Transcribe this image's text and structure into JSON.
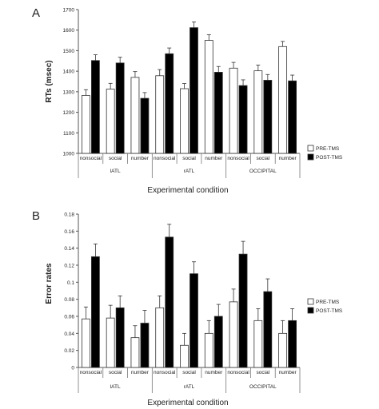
{
  "panels": [
    {
      "letter": "A",
      "ylabel": "RTs (msec)",
      "xlabel": "Experimental condition"
    },
    {
      "letter": "B",
      "ylabel": "Error rates",
      "xlabel": "Experimental condition"
    }
  ],
  "chart_data": [
    {
      "type": "bar",
      "categories": [
        "nonsocial",
        "social",
        "number",
        "nonsocial",
        "social",
        "number",
        "nonsocial",
        "social",
        "number"
      ],
      "groups": [
        {
          "label": "lATL",
          "span": [
            0,
            2
          ]
        },
        {
          "label": "rATL",
          "span": [
            3,
            5
          ]
        },
        {
          "label": "OCCIPITAL",
          "span": [
            6,
            8
          ]
        }
      ],
      "series": [
        {
          "name": "PRE-TMS",
          "fill": "#ffffff",
          "values": [
            1282,
            1313,
            1370,
            1378,
            1315,
            1550,
            1415,
            1402,
            1520
          ],
          "errors": [
            28,
            28,
            28,
            30,
            25,
            28,
            28,
            28,
            25
          ]
        },
        {
          "name": "POST-TMS",
          "fill": "#000000",
          "values": [
            1452,
            1440,
            1268,
            1485,
            1612,
            1395,
            1330,
            1356,
            1353
          ],
          "errors": [
            28,
            28,
            28,
            28,
            28,
            28,
            28,
            28,
            28
          ]
        }
      ],
      "yticks": [
        "1000",
        "1100",
        "1200",
        "1300",
        "1400",
        "1500",
        "1600",
        "1700"
      ],
      "ylim": [
        1000,
        1700
      ],
      "ylabel": "RTs (msec)",
      "xlabel": "Experimental condition",
      "legend": "right"
    },
    {
      "type": "bar",
      "categories": [
        "nonsocial",
        "social",
        "number",
        "nonsocial",
        "social",
        "number",
        "nonsocial",
        "social",
        "number"
      ],
      "groups": [
        {
          "label": "lATL",
          "span": [
            0,
            2
          ]
        },
        {
          "label": "rATL",
          "span": [
            3,
            5
          ]
        },
        {
          "label": "OCCIPITAL",
          "span": [
            6,
            8
          ]
        }
      ],
      "series": [
        {
          "name": "PRE-TMS",
          "fill": "#ffffff",
          "values": [
            0.057,
            0.058,
            0.035,
            0.07,
            0.026,
            0.04,
            0.077,
            0.055,
            0.04
          ],
          "errors": [
            0.014,
            0.015,
            0.014,
            0.014,
            0.014,
            0.015,
            0.015,
            0.014,
            0.015
          ]
        },
        {
          "name": "POST-TMS",
          "fill": "#000000",
          "values": [
            0.13,
            0.07,
            0.052,
            0.153,
            0.11,
            0.06,
            0.133,
            0.089,
            0.055
          ],
          "errors": [
            0.015,
            0.014,
            0.015,
            0.015,
            0.014,
            0.014,
            0.015,
            0.015,
            0.014
          ]
        }
      ],
      "yticks": [
        "0",
        "0.02",
        "0.04",
        "0.06",
        "0.08",
        "0.1",
        "0.12",
        "0.14",
        "0.16",
        "0.18"
      ],
      "ylim": [
        0,
        0.18
      ],
      "ylabel": "Error rates",
      "xlabel": "Experimental condition",
      "legend": "right"
    }
  ]
}
